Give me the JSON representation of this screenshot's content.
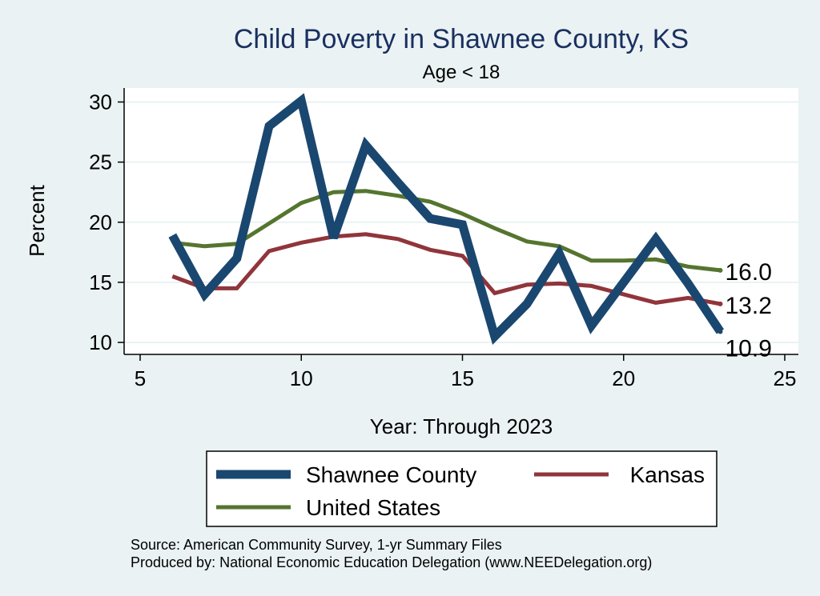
{
  "chart_data": {
    "type": "line",
    "title": "Child Poverty in Shawnee County, KS",
    "subtitle": "Age < 18",
    "xlabel": "Year: Through 2023",
    "ylabel": "Percent",
    "xlim": [
      5,
      25
    ],
    "ylim": [
      9.2,
      31
    ],
    "xticks": [
      5,
      10,
      15,
      20,
      25
    ],
    "yticks": [
      10,
      15,
      20,
      25,
      30
    ],
    "grid": true,
    "legend_position": "bottom",
    "x": [
      6,
      7,
      8,
      9,
      10,
      11,
      12,
      13,
      14,
      15,
      16,
      17,
      18,
      19,
      20,
      21,
      22,
      23
    ],
    "series": [
      {
        "name": "Shawnee County",
        "color": "#1a476f",
        "values": [
          18.9,
          14.0,
          17.0,
          28.0,
          30.1,
          18.7,
          26.4,
          23.3,
          20.3,
          19.8,
          10.5,
          13.2,
          17.4,
          11.4,
          15.0,
          18.6,
          14.9,
          10.9
        ],
        "end_label": "10.9"
      },
      {
        "name": "Kansas",
        "color": "#90353b",
        "values": [
          15.5,
          14.5,
          14.5,
          17.6,
          18.3,
          18.8,
          19.0,
          18.6,
          17.7,
          17.2,
          14.1,
          14.8,
          14.9,
          14.7,
          14.0,
          13.3,
          13.7,
          13.2
        ],
        "end_label": "13.2"
      },
      {
        "name": "United States",
        "color": "#55752f",
        "values": [
          18.3,
          18.0,
          18.2,
          19.9,
          21.6,
          22.5,
          22.6,
          22.2,
          21.7,
          20.7,
          19.5,
          18.4,
          18.0,
          16.8,
          16.8,
          16.9,
          16.3,
          16.0
        ],
        "end_label": "16.0"
      }
    ],
    "notes": [
      "Source: American Community Survey, 1-yr Summary Files",
      "Produced by: National Economic Education Delegation (www.NEEDelegation.org)"
    ]
  }
}
